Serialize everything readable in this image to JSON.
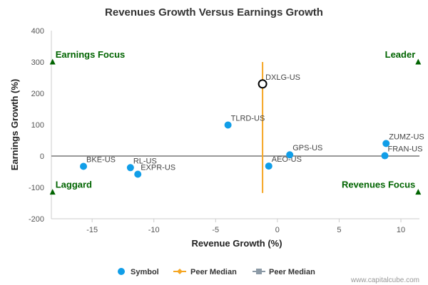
{
  "chart_data": {
    "type": "scatter",
    "title": "Revenues Growth Versus Earnings Growth",
    "xlabel": "Revenue Growth (%)",
    "ylabel": "Earnings Growth (%)",
    "xlim": [
      -18.3,
      11.5
    ],
    "ylim": [
      -200,
      400
    ],
    "x_ticks": [
      -15,
      -10,
      -5,
      0,
      5,
      10
    ],
    "y_ticks": [
      400,
      300,
      200,
      100,
      0,
      -100,
      -200
    ],
    "grid": false,
    "points": [
      {
        "label": "BKE-US",
        "x": -15.7,
        "y": -33
      },
      {
        "label": "RL-US",
        "x": -11.9,
        "y": -37
      },
      {
        "label": "EXPR-US",
        "x": -11.3,
        "y": -58
      },
      {
        "label": "TLRD-US",
        "x": -4.0,
        "y": 99
      },
      {
        "label": "AEO-US",
        "x": -0.7,
        "y": -32
      },
      {
        "label": "GPS-US",
        "x": 1.0,
        "y": 4
      },
      {
        "label": "ZUMZ-US",
        "x": 8.8,
        "y": 40
      },
      {
        "label": "FRAN-US",
        "x": 8.7,
        "y": 1
      }
    ],
    "highlight": {
      "label": "DXLG-US",
      "x": -1.2,
      "y": 230
    },
    "peer_median_x": -1.2,
    "peer_median_y": 0,
    "peer_median_line_range": [
      -118,
      300
    ],
    "quadrants": [
      {
        "label": "Earnings Focus",
        "position": "top-left"
      },
      {
        "label": "Leader",
        "position": "top-right"
      },
      {
        "label": "Laggard",
        "position": "bottom-left"
      },
      {
        "label": "Revenues Focus",
        "position": "bottom-right"
      }
    ],
    "legend": {
      "placement": "bottom",
      "items": [
        {
          "label": "Symbol",
          "color": "#119ee8"
        },
        {
          "label": "Peer Median",
          "color": "#f5a623"
        },
        {
          "label": "Peer Median",
          "color": "#8c9aa6"
        }
      ]
    },
    "credit": "www.capitalcube.com",
    "colors": {
      "symbol": "#119ee8",
      "vertical_median": "#f5a623",
      "horizontal_median": "#999999",
      "quadrant": "#006400",
      "highlight_stroke": "#000000"
    }
  }
}
